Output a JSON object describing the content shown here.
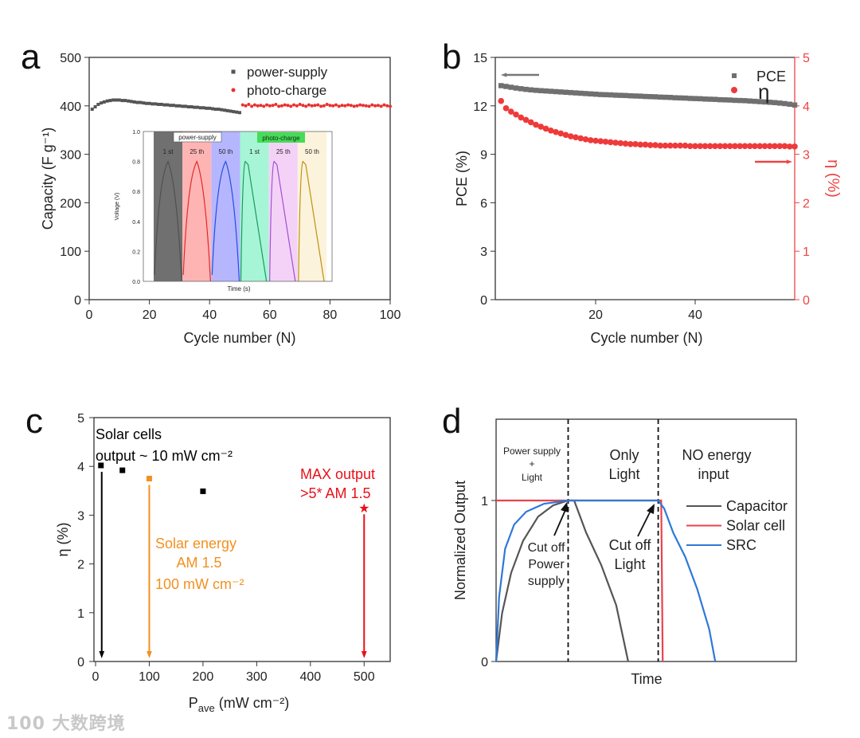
{
  "watermark": {
    "logo_text": "100",
    "text": "大数跨境"
  },
  "chart_data": [
    {
      "panel": "a",
      "type": "scatter",
      "xlabel": "Cycle number (N)",
      "ylabel": "Capacity (F g⁻¹)",
      "xlim": [
        0,
        100
      ],
      "ylim": [
        0,
        500
      ],
      "xticks": [
        0,
        20,
        40,
        60,
        80,
        100
      ],
      "yticks": [
        0,
        100,
        200,
        300,
        400,
        500
      ],
      "legend_position": "top-right",
      "series": [
        {
          "name": "power-supply",
          "color": "#555555",
          "marker": "square",
          "x_start": 1,
          "values": [
            393,
            398,
            403,
            406,
            408,
            410,
            411,
            412,
            412,
            412,
            411,
            411,
            410,
            409,
            408,
            407,
            407,
            406,
            405,
            405,
            404,
            404,
            403,
            403,
            402,
            402,
            401,
            401,
            400,
            400,
            399,
            399,
            398,
            398,
            397,
            397,
            396,
            396,
            395,
            395,
            394,
            393,
            393,
            392,
            391,
            390,
            389,
            388,
            387,
            386
          ]
        },
        {
          "name": "photo-charge",
          "color": "#e83030",
          "marker": "circle",
          "x_start": 51,
          "values": [
            402,
            400,
            403,
            399,
            402,
            400,
            401,
            399,
            402,
            400,
            401,
            403,
            399,
            400,
            402,
            401,
            399,
            402,
            400,
            403,
            401,
            399,
            402,
            400,
            401,
            402,
            399,
            400,
            403,
            401,
            400,
            402,
            399,
            401,
            400,
            402,
            401,
            399,
            400,
            402,
            401,
            400,
            399,
            402,
            400,
            401,
            399,
            402,
            400,
            399
          ]
        }
      ],
      "inset": {
        "xlabel": "Time (s)",
        "ylabel": "Voltage (V)",
        "yticks": [
          "1.0",
          "0.8",
          "0.8",
          "0.4",
          "0.2",
          "0.0"
        ],
        "group_labels": [
          "power-supply",
          "photo-charge"
        ],
        "segments": [
          {
            "label": "1 st",
            "mode": "power-supply",
            "peak": 0.8,
            "band": "#707070",
            "line": "#505050"
          },
          {
            "label": "25 th",
            "mode": "power-supply",
            "peak": 0.8,
            "band": "#ffb4b4",
            "line": "#e02a2a"
          },
          {
            "label": "50 th",
            "mode": "power-supply",
            "peak": 0.8,
            "band": "#b6b6ff",
            "line": "#2050e0"
          },
          {
            "label": "1 st",
            "mode": "photo-charge",
            "peak": 0.8,
            "band": "#a6f5d6",
            "line": "#1c9a5a"
          },
          {
            "label": "25 th",
            "mode": "photo-charge",
            "peak": 0.8,
            "band": "#f4d2f8",
            "line": "#a050d0"
          },
          {
            "label": "50 th",
            "mode": "photo-charge",
            "peak": 0.8,
            "band": "#fcf3dc",
            "line": "#c09010"
          }
        ]
      }
    },
    {
      "panel": "b",
      "type": "scatter",
      "xlabel": "Cycle number (N)",
      "ylabel": "PCE (%)",
      "ylabel_right": "η (%)",
      "xlim": [
        0,
        60
      ],
      "ylim": [
        0,
        15
      ],
      "ylim_right": [
        0,
        5
      ],
      "xticks": [
        20,
        40
      ],
      "yticks": [
        0,
        3,
        6,
        9,
        12,
        15
      ],
      "yticks_right": [
        0,
        1,
        2,
        3,
        4,
        5
      ],
      "legend_position": "top-right",
      "series": [
        {
          "name": "PCE",
          "axis": "left",
          "color": "#707070",
          "marker": "square",
          "x_start": 1,
          "values": [
            13.25,
            13.2,
            13.15,
            13.1,
            13.06,
            13.02,
            12.99,
            12.96,
            12.94,
            12.92,
            12.9,
            12.88,
            12.86,
            12.84,
            12.82,
            12.8,
            12.78,
            12.76,
            12.74,
            12.72,
            12.7,
            12.69,
            12.68,
            12.66,
            12.65,
            12.64,
            12.62,
            12.61,
            12.6,
            12.58,
            12.57,
            12.56,
            12.54,
            12.53,
            12.52,
            12.5,
            12.49,
            12.48,
            12.46,
            12.45,
            12.44,
            12.42,
            12.41,
            12.4,
            12.38,
            12.37,
            12.36,
            12.34,
            12.33,
            12.32,
            12.3,
            12.28,
            12.26,
            12.24,
            12.22,
            12.2,
            12.17,
            12.14,
            12.1,
            12.05
          ]
        },
        {
          "name": "η",
          "axis": "right",
          "color": "#ee3a3a",
          "marker": "circle",
          "x_start": 1,
          "values": [
            4.1,
            3.95,
            3.88,
            3.82,
            3.76,
            3.71,
            3.66,
            3.61,
            3.57,
            3.53,
            3.49,
            3.46,
            3.43,
            3.4,
            3.37,
            3.35,
            3.33,
            3.31,
            3.29,
            3.28,
            3.27,
            3.26,
            3.25,
            3.24,
            3.23,
            3.22,
            3.21,
            3.21,
            3.2,
            3.2,
            3.19,
            3.19,
            3.18,
            3.18,
            3.18,
            3.18,
            3.18,
            3.18,
            3.17,
            3.17,
            3.17,
            3.17,
            3.17,
            3.17,
            3.17,
            3.17,
            3.17,
            3.17,
            3.17,
            3.17,
            3.17,
            3.17,
            3.17,
            3.17,
            3.17,
            3.17,
            3.17,
            3.17,
            3.16,
            3.16
          ]
        }
      ]
    },
    {
      "panel": "c",
      "type": "scatter",
      "xlabel": {
        "main": "P",
        "sub": "ave",
        "rest": " (mW cm⁻²)"
      },
      "ylabel": "η (%)",
      "xlim": [
        0,
        550
      ],
      "ylim": [
        0,
        5
      ],
      "xticks": [
        0,
        100,
        200,
        300,
        400,
        500
      ],
      "yticks": [
        0,
        1,
        2,
        3,
        4,
        5
      ],
      "points": [
        {
          "x": 10,
          "y": 4.02,
          "color": "#000000",
          "marker": "square",
          "arrow": true
        },
        {
          "x": 50,
          "y": 3.92,
          "color": "#000000",
          "marker": "square",
          "arrow": false
        },
        {
          "x": 100,
          "y": 3.75,
          "color": "#f39020",
          "marker": "square",
          "arrow": true
        },
        {
          "x": 200,
          "y": 3.49,
          "color": "#000000",
          "marker": "square",
          "arrow": false
        },
        {
          "x": 500,
          "y": 3.15,
          "color": "#e8101a",
          "marker": "star",
          "arrow": true
        }
      ],
      "annotations": [
        {
          "lines": [
            "Solar cells",
            "output ~ 10 mW cm⁻²"
          ],
          "color": "#000000"
        },
        {
          "lines": [
            "Solar energy",
            "AM 1.5",
            "100 mW cm⁻²"
          ],
          "color": "#f39020"
        },
        {
          "lines": [
            "MAX output",
            ">5* AM 1.5"
          ],
          "color": "#e8101a"
        }
      ]
    },
    {
      "panel": "d",
      "type": "line",
      "xlabel": "Time",
      "ylabel": "Normalized Output",
      "xlim": [
        0,
        100
      ],
      "ylim": [
        0,
        1.5
      ],
      "yticks": [
        0,
        1
      ],
      "dividers": [
        24,
        54
      ],
      "legend_position": "right",
      "series": [
        {
          "name": "Capacitor",
          "color": "#555555",
          "points": [
            [
              0,
              0
            ],
            [
              2,
              0.3
            ],
            [
              5,
              0.55
            ],
            [
              9,
              0.75
            ],
            [
              14,
              0.9
            ],
            [
              19,
              0.97
            ],
            [
              24,
              1
            ],
            [
              26,
              1
            ],
            [
              30,
              0.8
            ],
            [
              35,
              0.6
            ],
            [
              40,
              0.35
            ],
            [
              44,
              0
            ]
          ]
        },
        {
          "name": "Solar cell",
          "color": "#e8434a",
          "points": [
            [
              0,
              1
            ],
            [
              55,
              1
            ],
            [
              55.5,
              0
            ]
          ]
        },
        {
          "name": "SRC",
          "color": "#2f78d8",
          "points": [
            [
              0,
              0
            ],
            [
              1,
              0.4
            ],
            [
              3,
              0.7
            ],
            [
              6,
              0.85
            ],
            [
              10,
              0.93
            ],
            [
              16,
              0.98
            ],
            [
              24,
              1
            ],
            [
              54,
              1
            ],
            [
              56,
              0.95
            ],
            [
              59,
              0.8
            ],
            [
              63,
              0.65
            ],
            [
              67,
              0.45
            ],
            [
              71,
              0.2
            ],
            [
              73,
              0
            ]
          ]
        }
      ],
      "regions": [
        {
          "lines": [
            "Power supply",
            "+",
            "Light"
          ]
        },
        {
          "lines": [
            "Only",
            "Light"
          ]
        },
        {
          "lines": [
            "NO energy",
            "input"
          ]
        }
      ],
      "annotations": [
        {
          "lines": [
            "Cut off",
            "Power",
            "supply"
          ]
        },
        {
          "lines": [
            "Cut off",
            "Light"
          ]
        }
      ]
    }
  ],
  "panel_labels": [
    "a",
    "b",
    "c",
    "d"
  ]
}
